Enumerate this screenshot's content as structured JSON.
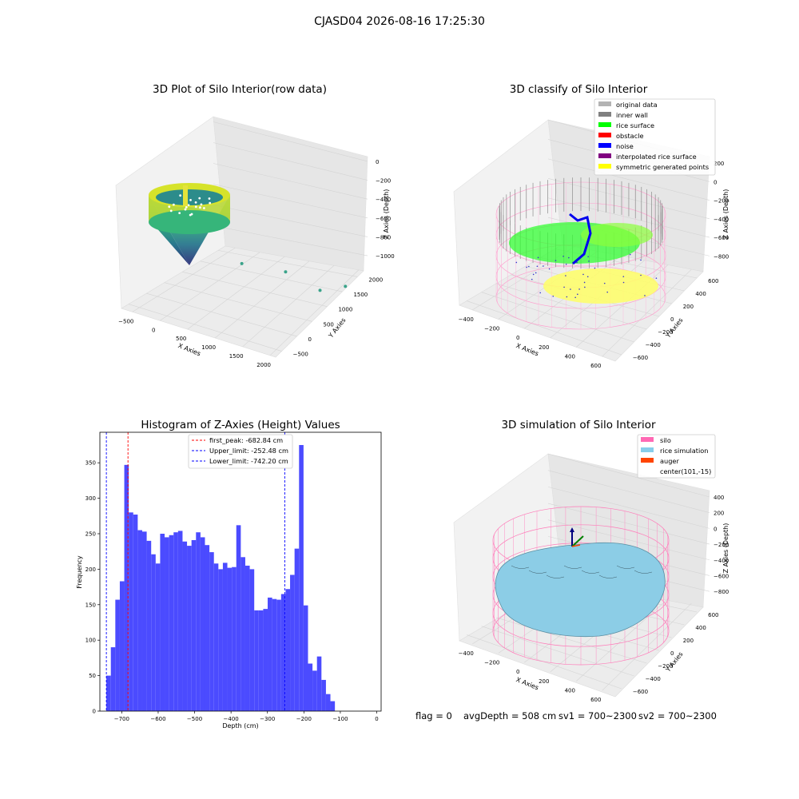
{
  "figure": {
    "suptitle": "CJASD04 2026-08-16 17:25:30",
    "footer": {
      "flag": "flag = 0",
      "avg": "avgDepth = 508 cm",
      "sv1": "sv1 = 700~2300",
      "sv2": "sv2 = 700~2300"
    }
  },
  "chart_data": [
    {
      "type": "scatter",
      "projection": "3d",
      "title": "3D Plot of Silo Interior(row data)",
      "xlabel": "X Axies",
      "ylabel": "Y Axies",
      "zlabel": "Z Axies (Depth)",
      "x_ticks": [
        -500,
        0,
        500,
        1000,
        1500,
        2000
      ],
      "y_ticks": [
        -500,
        0,
        500,
        1000,
        1500,
        2000
      ],
      "z_ticks": [
        0,
        -200,
        -400,
        -600,
        -800,
        -1000
      ],
      "xlim": [
        -700,
        2100
      ],
      "ylim": [
        -700,
        2200
      ],
      "zlim": [
        -1050,
        50
      ],
      "colormap": "viridis",
      "outliers": [
        {
          "x": 900,
          "y": 200,
          "z": -560
        },
        {
          "x": 1500,
          "y": 500,
          "z": -600
        },
        {
          "x": 1800,
          "y": 1000,
          "z": -820
        },
        {
          "x": 2000,
          "y": 1400,
          "z": -830
        }
      ],
      "grid": true
    },
    {
      "type": "scatter",
      "projection": "3d",
      "title": "3D classify of Silo Interior",
      "xlabel": "X Axies",
      "ylabel": "Y Axies",
      "zlabel": "Z Axies (Depth)",
      "x_ticks": [
        -400,
        -200,
        0,
        200,
        400,
        600
      ],
      "y_ticks": [
        -600,
        -400,
        -200,
        0,
        200,
        400,
        600
      ],
      "z_ticks": [
        200,
        0,
        -200,
        -400,
        -600,
        -800
      ],
      "legend": [
        {
          "label": "original data",
          "color": "#b3b3b3"
        },
        {
          "label": "inner wall",
          "color": "#808080"
        },
        {
          "label": "rice surface",
          "color": "#00ff00"
        },
        {
          "label": "obstacle",
          "color": "#ff0000"
        },
        {
          "label": "noise",
          "color": "#0000ff"
        },
        {
          "label": "interpolated rice surface",
          "color": "#800080"
        },
        {
          "label": "symmetric generated points",
          "color": "#ffff00"
        }
      ],
      "legend_loc": "upper right",
      "grid": true
    },
    {
      "type": "bar",
      "title": "Histogram of Z-Axies (Height) Values",
      "xlabel": "Depth (cm)",
      "ylabel": "Frequency",
      "xlim": [
        -760,
        12
      ],
      "ylim": [
        0,
        393
      ],
      "x_ticks": [
        -700,
        -600,
        -500,
        -400,
        -300,
        -200,
        -100,
        0
      ],
      "y_ticks": [
        0,
        50,
        100,
        150,
        200,
        250,
        300,
        350
      ],
      "bin_start": -742.2,
      "bin_width": 12.3,
      "values": [
        50,
        90,
        157,
        183,
        347,
        280,
        277,
        255,
        253,
        240,
        221,
        208,
        250,
        245,
        248,
        252,
        254,
        239,
        233,
        241,
        252,
        245,
        234,
        224,
        208,
        200,
        209,
        202,
        203,
        262,
        217,
        205,
        200,
        142,
        142,
        144,
        160,
        158,
        157,
        165,
        172,
        192,
        229,
        375,
        149,
        67,
        57,
        77,
        44,
        24,
        14
      ],
      "bar_color": "#4b4bff",
      "vlines": [
        {
          "label": "first_peak: -682.84 cm",
          "x": -682.84,
          "color": "#ff0000"
        },
        {
          "label": "Upper_limit: -252.48 cm",
          "x": -252.48,
          "color": "#0000ff"
        },
        {
          "label": "Lower_limit: -742.20 cm",
          "x": -742.2,
          "color": "#0000ff"
        }
      ],
      "legend_loc": "upper center"
    },
    {
      "type": "surface",
      "projection": "3d",
      "title": "3D simulation of Silo Interior",
      "xlabel": "X Axies",
      "ylabel": "Y Axies",
      "zlabel": "Z Axies (Depth)",
      "x_ticks": [
        -400,
        -200,
        0,
        200,
        400,
        600
      ],
      "y_ticks": [
        -600,
        -400,
        -200,
        0,
        200,
        400,
        600
      ],
      "z_ticks": [
        400,
        200,
        0,
        -200,
        -400,
        -600,
        -800
      ],
      "legend": [
        {
          "label": "silo",
          "color": "#ff69b4"
        },
        {
          "label": "rice simulation",
          "color": "#87ceeb"
        },
        {
          "label": "auger",
          "color": "#ff4500"
        },
        {
          "label": "center(101,-15)",
          "color": ""
        }
      ],
      "legend_loc": "upper right",
      "grid": true
    }
  ]
}
